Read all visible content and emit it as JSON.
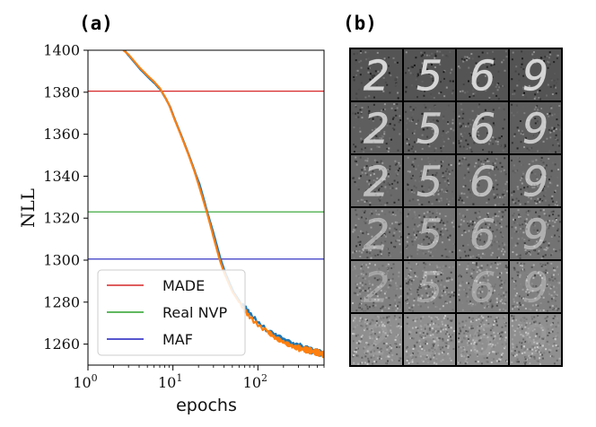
{
  "panels": {
    "a_label": "(a)",
    "b_label": "(b)"
  },
  "chart_data": {
    "type": "line",
    "xlabel": "epochs",
    "ylabel": "NLL",
    "xscale": "log",
    "xlim": [
      1,
      600
    ],
    "ylim": [
      1250,
      1400
    ],
    "yticks": [
      1260,
      1280,
      1300,
      1320,
      1340,
      1360,
      1380,
      1400
    ],
    "ytick_labels": [
      "1260",
      "1280",
      "1300",
      "1320",
      "1340",
      "1360",
      "1380",
      "1400"
    ],
    "xticks": [
      1,
      10,
      100
    ],
    "xtick_labels": [
      {
        "base": "10",
        "exp": "0"
      },
      {
        "base": "10",
        "exp": "1"
      },
      {
        "base": "10",
        "exp": "2"
      }
    ],
    "reference_lines": [
      {
        "name": "MADE",
        "value": 1380.5,
        "color": "#d62728"
      },
      {
        "name": "Real NVP",
        "value": 1323,
        "color": "#2ca02c"
      },
      {
        "name": "MAF",
        "value": 1300.5,
        "color": "#1f1fbf"
      }
    ],
    "legend_location": "lower-left",
    "series": [
      {
        "name": "training curve (blue)",
        "color": "#1f77b4",
        "x": [
          2.6,
          3,
          4,
          5,
          6,
          7,
          8,
          9,
          10,
          12,
          15,
          18,
          20,
          25,
          30,
          35,
          40,
          50,
          60,
          70,
          80,
          100,
          130,
          160,
          200,
          250,
          300,
          400,
          500,
          600
        ],
        "y": [
          1400,
          1397,
          1391,
          1387,
          1384,
          1381,
          1377,
          1373,
          1368,
          1360,
          1350,
          1341,
          1336,
          1322,
          1311,
          1301,
          1294,
          1285,
          1280,
          1277,
          1274,
          1270,
          1266,
          1264,
          1262,
          1260,
          1259,
          1257,
          1256,
          1255
        ]
      },
      {
        "name": "training curve (orange)",
        "color": "#ff7f0e",
        "x": [
          2.6,
          3,
          4,
          5,
          6,
          7,
          8,
          9,
          10,
          12,
          15,
          18,
          20,
          25,
          30,
          35,
          40,
          50,
          60,
          70,
          80,
          100,
          130,
          160,
          200,
          250,
          300,
          400,
          500,
          600
        ],
        "y": [
          1400,
          1398,
          1392,
          1388,
          1385,
          1382,
          1378,
          1374,
          1369,
          1361,
          1351,
          1342,
          1336,
          1323,
          1311,
          1301,
          1294,
          1285,
          1280,
          1276,
          1273,
          1269,
          1266,
          1263,
          1261,
          1259,
          1258,
          1257,
          1256,
          1255
        ]
      }
    ]
  },
  "image_grid": {
    "description_digits": [
      "2",
      "5",
      "6",
      "9"
    ],
    "rows": 6,
    "noise_levels": [
      0.12,
      0.22,
      0.34,
      0.5,
      0.68,
      0.95
    ],
    "background_levels": [
      0.33,
      0.37,
      0.41,
      0.45,
      0.5,
      0.56
    ]
  }
}
